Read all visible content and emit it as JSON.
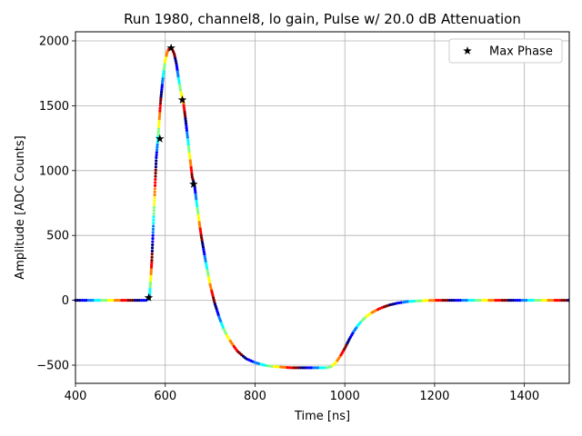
{
  "chart_data": {
    "type": "scatter",
    "title": "Run 1980, channel8, lo gain, Pulse w/ 20.0 dB Attenuation",
    "xlabel": "Time [ns]",
    "ylabel": "Amplitude [ADC Counts]",
    "xlim": [
      400,
      1500
    ],
    "ylim": [
      -640,
      2070
    ],
    "xticks": [
      400,
      600,
      800,
      1000,
      1200,
      1400
    ],
    "yticks": [
      -500,
      0,
      500,
      1000,
      1500,
      2000
    ],
    "xtick_labels": [
      "400",
      "600",
      "800",
      "1000",
      "1200",
      "1400"
    ],
    "ytick_labels": [
      "−500",
      "0",
      "500",
      "1000",
      "1500",
      "2000"
    ],
    "grid": true,
    "legend": {
      "position": "top-right",
      "entries": [
        "Max Phase"
      ]
    },
    "colormap": [
      "#00007f",
      "#0000ff",
      "#007fff",
      "#00ffff",
      "#7fff7f",
      "#ffff00",
      "#ff7f00",
      "#ff0000",
      "#7f0000"
    ],
    "pulse_series": {
      "marker": "dot",
      "x": [
        400,
        560,
        565,
        570,
        575,
        580,
        585,
        590,
        595,
        600,
        605,
        610,
        615,
        620,
        625,
        630,
        635,
        640,
        645,
        650,
        655,
        660,
        665,
        670,
        675,
        680,
        690,
        700,
        710,
        720,
        730,
        740,
        750,
        760,
        770,
        780,
        800,
        820,
        840,
        860,
        880,
        900,
        920,
        940,
        960,
        970,
        980,
        990,
        1000,
        1010,
        1020,
        1030,
        1040,
        1050,
        1060,
        1080,
        1100,
        1120,
        1140,
        1160,
        1180,
        1200,
        1250,
        1300,
        1400,
        1500
      ],
      "y": [
        0,
        0,
        20,
        300,
        700,
        1100,
        1300,
        1550,
        1720,
        1850,
        1920,
        1945,
        1940,
        1900,
        1820,
        1700,
        1600,
        1540,
        1400,
        1250,
        1100,
        950,
        890,
        750,
        620,
        500,
        300,
        120,
        -20,
        -130,
        -220,
        -290,
        -340,
        -390,
        -420,
        -450,
        -480,
        -500,
        -510,
        -515,
        -520,
        -520,
        -520,
        -520,
        -520,
        -510,
        -480,
        -430,
        -370,
        -300,
        -240,
        -190,
        -150,
        -120,
        -95,
        -60,
        -35,
        -20,
        -10,
        -5,
        -2,
        0,
        0,
        0,
        0,
        0
      ]
    },
    "max_phase_series": {
      "name": "Max Phase",
      "marker": "star",
      "color": "#000000",
      "x": [
        563,
        588,
        613,
        638,
        663
      ],
      "y": [
        20,
        1245,
        1945,
        1545,
        895
      ]
    }
  }
}
